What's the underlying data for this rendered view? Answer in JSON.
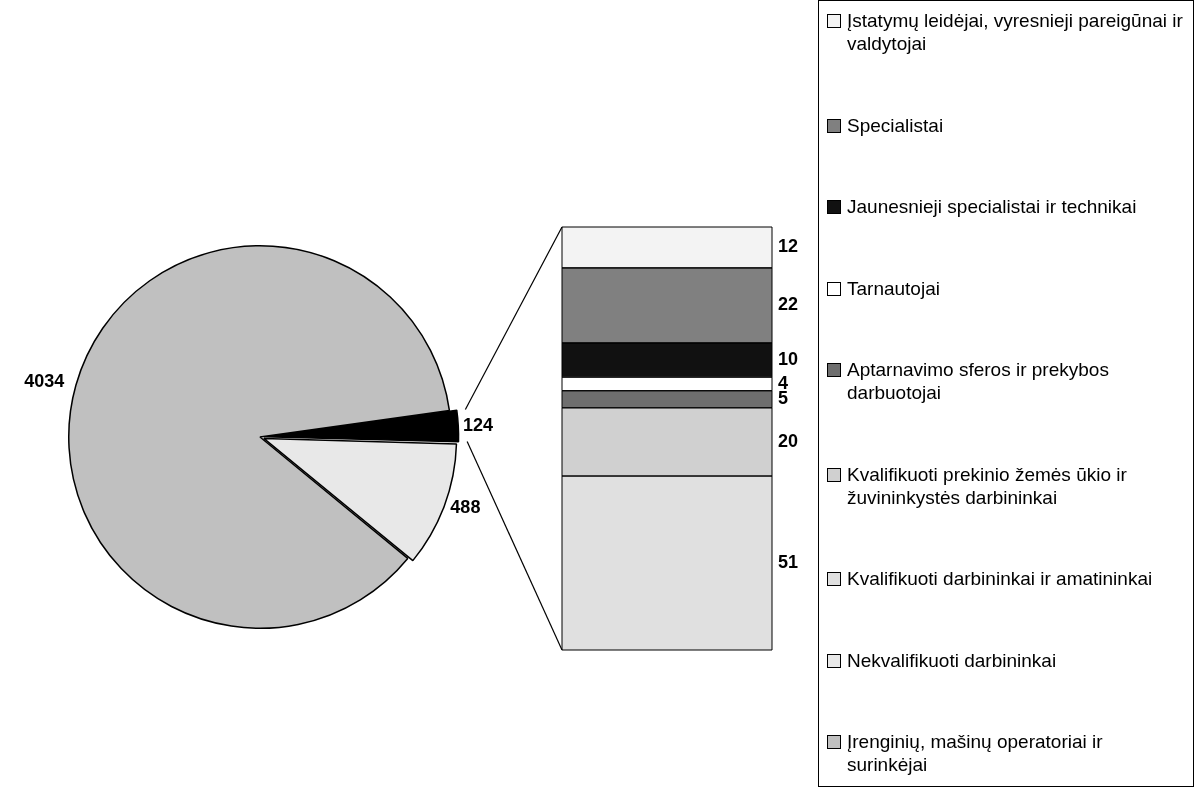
{
  "chart_data": [
    {
      "type": "pie",
      "categories": [
        null,
        "Nekvalifikuoti darbininkai",
        "Įrenginių, mašinų operatoriai ir surinkėjai"
      ],
      "values": [
        124,
        488,
        4034
      ],
      "colors": [
        "#000000",
        "#e8e8e8",
        "#c0c0c0"
      ],
      "data_labels": true,
      "legend": "right"
    },
    {
      "type": "bar",
      "stacked": true,
      "categories": [
        null
      ],
      "data_labels": true,
      "legend": "right",
      "series": [
        {
          "name": "Kvalifikuoti darbininkai ir amatininkai",
          "color": "#e0e0e0",
          "values": [
            51
          ]
        },
        {
          "name": "Kvalifikuoti prekinio žemės ūkio ir žuvininkystės darbininkai",
          "color": "#d0d0d0",
          "values": [
            20
          ]
        },
        {
          "name": "Aptarnavimo sferos ir prekybos darbuotojai",
          "color": "#6e6e6e",
          "values": [
            5
          ]
        },
        {
          "name": "Tarnautojai",
          "color": "#ffffff",
          "values": [
            4
          ]
        },
        {
          "name": "Jaunesnieji specialistai ir technikai",
          "color": "#111111",
          "values": [
            10
          ]
        },
        {
          "name": "Specialistai",
          "color": "#808080",
          "values": [
            22
          ]
        },
        {
          "name": "Įstatymų leidėjai, vyresnieji pareigūnai ir valdytojai",
          "color": "#f3f3f3",
          "values": [
            12
          ]
        }
      ]
    }
  ]
}
